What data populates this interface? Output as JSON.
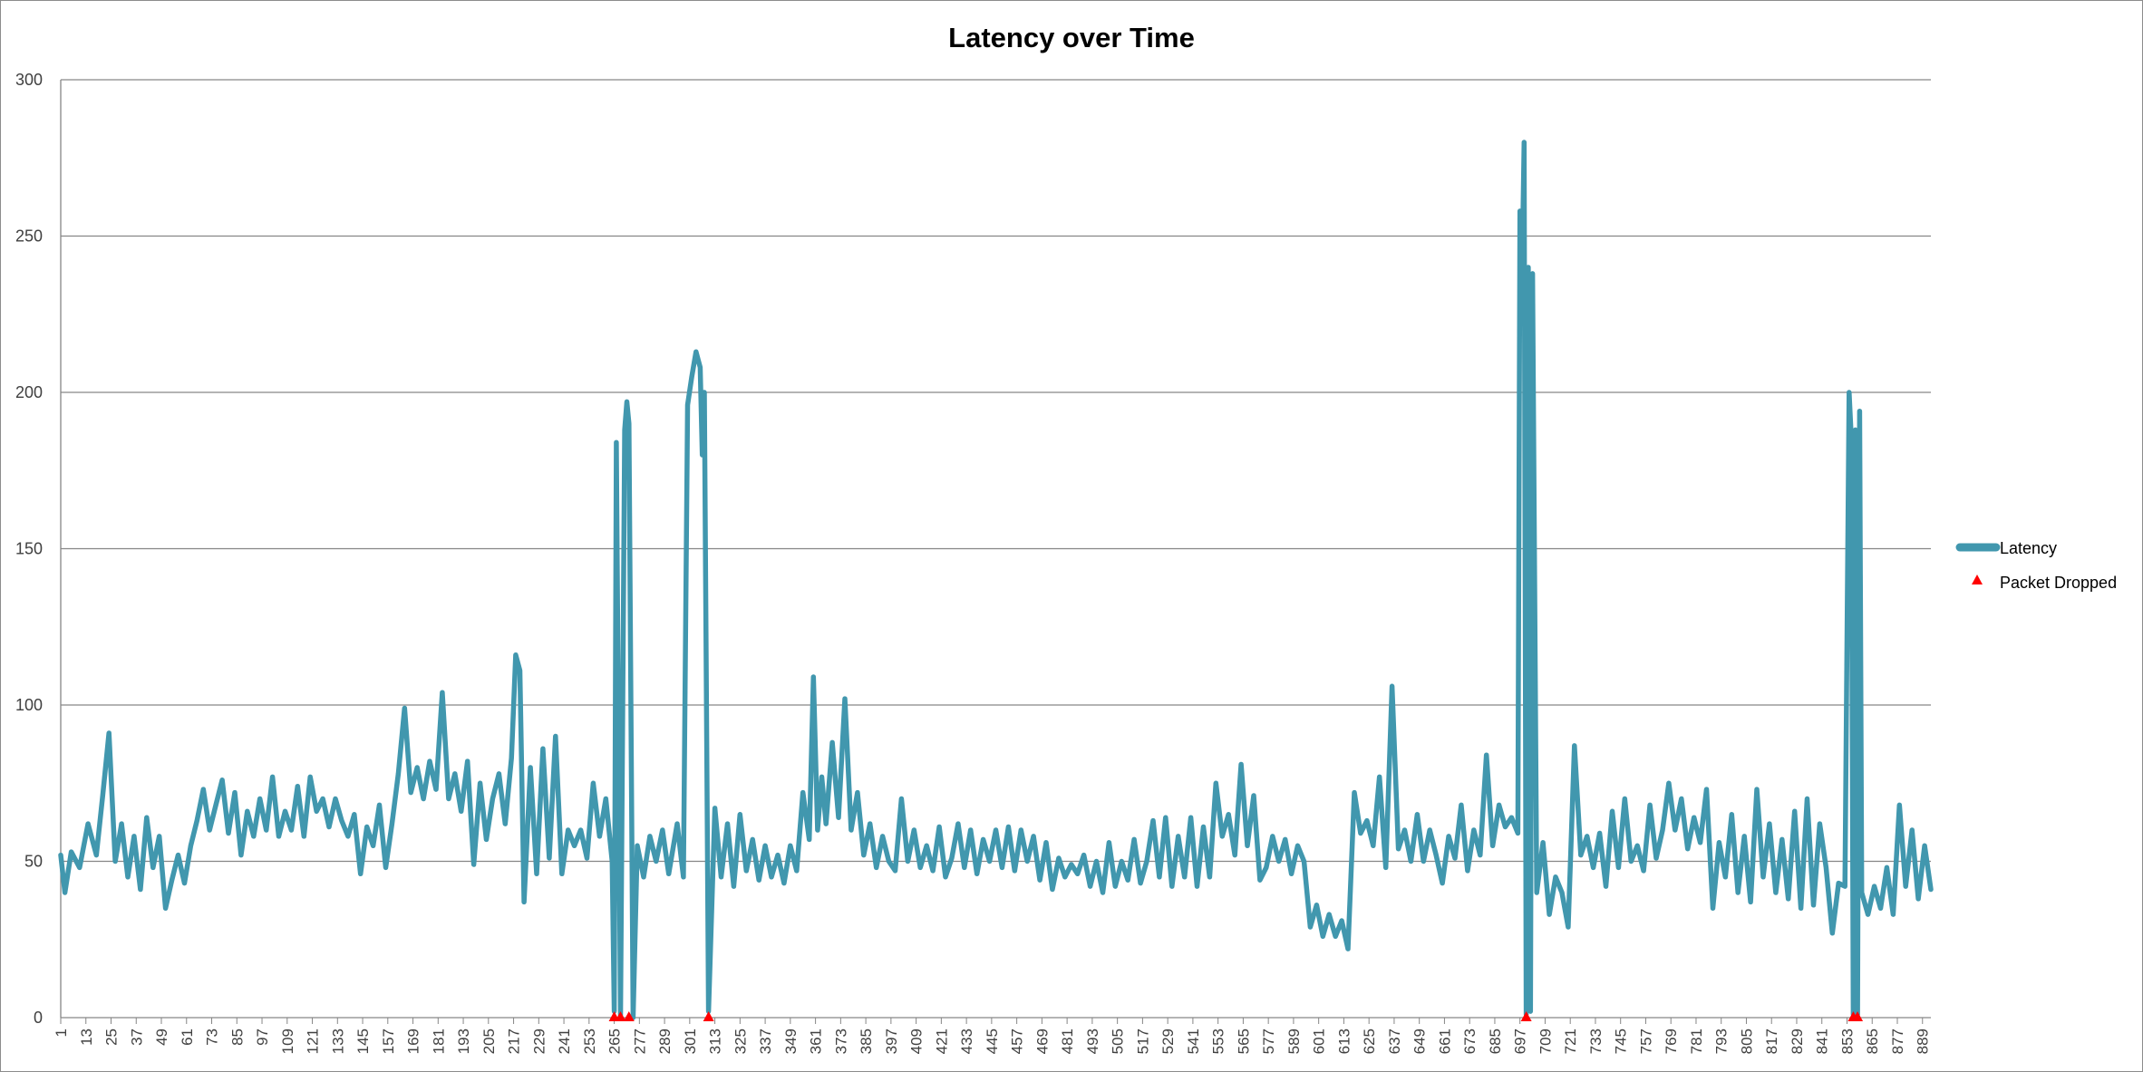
{
  "chart_data": {
    "type": "line",
    "title": "Latency over Time",
    "xlabel": "",
    "ylabel": "",
    "ylim": [
      0,
      300
    ],
    "yticks": [
      0,
      50,
      100,
      150,
      200,
      250,
      300
    ],
    "x_range": [
      1,
      893
    ],
    "xtick_labels": [
      "1",
      "13",
      "25",
      "37",
      "49",
      "61",
      "73",
      "85",
      "97",
      "109",
      "121",
      "133",
      "145",
      "157",
      "169",
      "181",
      "193",
      "205",
      "217",
      "229",
      "241",
      "253",
      "265",
      "277",
      "289",
      "301",
      "313",
      "325",
      "337",
      "349",
      "361",
      "373",
      "385",
      "397",
      "409",
      "421",
      "433",
      "445",
      "457",
      "469",
      "481",
      "493",
      "505",
      "517",
      "529",
      "541",
      "553",
      "565",
      "577",
      "589",
      "601",
      "613",
      "625",
      "637",
      "649",
      "661",
      "673",
      "685",
      "697",
      "709",
      "721",
      "733",
      "745",
      "757",
      "769",
      "781",
      "793",
      "805",
      "817",
      "829",
      "841",
      "853",
      "865",
      "877",
      "889"
    ],
    "grid": true,
    "legend_position": "right",
    "colors": {
      "latency": "#4197AE",
      "dropped": "#FF0000",
      "grid": "#868686"
    },
    "series": [
      {
        "name": "Latency",
        "style": "line",
        "points": [
          [
            1,
            52
          ],
          [
            3,
            40
          ],
          [
            6,
            53
          ],
          [
            10,
            48
          ],
          [
            14,
            62
          ],
          [
            18,
            52
          ],
          [
            21,
            71
          ],
          [
            24,
            91
          ],
          [
            27,
            50
          ],
          [
            30,
            62
          ],
          [
            33,
            45
          ],
          [
            36,
            58
          ],
          [
            39,
            41
          ],
          [
            42,
            64
          ],
          [
            45,
            48
          ],
          [
            48,
            58
          ],
          [
            51,
            35
          ],
          [
            54,
            44
          ],
          [
            57,
            52
          ],
          [
            60,
            43
          ],
          [
            63,
            55
          ],
          [
            66,
            63
          ],
          [
            69,
            73
          ],
          [
            72,
            60
          ],
          [
            75,
            68
          ],
          [
            78,
            76
          ],
          [
            81,
            59
          ],
          [
            84,
            72
          ],
          [
            87,
            52
          ],
          [
            90,
            66
          ],
          [
            93,
            58
          ],
          [
            96,
            70
          ],
          [
            99,
            60
          ],
          [
            102,
            77
          ],
          [
            105,
            58
          ],
          [
            108,
            66
          ],
          [
            111,
            60
          ],
          [
            114,
            74
          ],
          [
            117,
            58
          ],
          [
            120,
            77
          ],
          [
            123,
            66
          ],
          [
            126,
            70
          ],
          [
            129,
            61
          ],
          [
            132,
            70
          ],
          [
            135,
            63
          ],
          [
            138,
            58
          ],
          [
            141,
            65
          ],
          [
            144,
            46
          ],
          [
            147,
            61
          ],
          [
            150,
            55
          ],
          [
            153,
            68
          ],
          [
            156,
            48
          ],
          [
            159,
            62
          ],
          [
            162,
            78
          ],
          [
            165,
            99
          ],
          [
            168,
            72
          ],
          [
            171,
            80
          ],
          [
            174,
            70
          ],
          [
            177,
            82
          ],
          [
            180,
            73
          ],
          [
            183,
            104
          ],
          [
            186,
            70
          ],
          [
            189,
            78
          ],
          [
            192,
            66
          ],
          [
            195,
            82
          ],
          [
            198,
            49
          ],
          [
            201,
            75
          ],
          [
            204,
            57
          ],
          [
            207,
            70
          ],
          [
            210,
            78
          ],
          [
            213,
            62
          ],
          [
            216,
            83
          ],
          [
            218,
            116
          ],
          [
            220,
            111
          ],
          [
            222,
            37
          ],
          [
            225,
            80
          ],
          [
            228,
            46
          ],
          [
            231,
            86
          ],
          [
            234,
            51
          ],
          [
            237,
            90
          ],
          [
            240,
            46
          ],
          [
            243,
            60
          ],
          [
            246,
            55
          ],
          [
            249,
            60
          ],
          [
            252,
            51
          ],
          [
            255,
            75
          ],
          [
            258,
            58
          ],
          [
            261,
            70
          ],
          [
            264,
            50
          ],
          [
            265,
            2
          ],
          [
            266,
            184
          ],
          [
            268,
            0
          ],
          [
            270,
            188
          ],
          [
            271,
            197
          ],
          [
            272,
            190
          ],
          [
            274,
            0
          ],
          [
            276,
            55
          ],
          [
            279,
            45
          ],
          [
            282,
            58
          ],
          [
            285,
            50
          ],
          [
            288,
            60
          ],
          [
            291,
            46
          ],
          [
            295,
            62
          ],
          [
            298,
            45
          ],
          [
            300,
            196
          ],
          [
            302,
            205
          ],
          [
            304,
            213
          ],
          [
            306,
            208
          ],
          [
            307,
            180
          ],
          [
            308,
            200
          ],
          [
            310,
            2
          ],
          [
            313,
            67
          ],
          [
            316,
            45
          ],
          [
            319,
            62
          ],
          [
            322,
            42
          ],
          [
            325,
            65
          ],
          [
            328,
            47
          ],
          [
            331,
            57
          ],
          [
            334,
            44
          ],
          [
            337,
            55
          ],
          [
            340,
            45
          ],
          [
            343,
            52
          ],
          [
            346,
            43
          ],
          [
            349,
            55
          ],
          [
            352,
            47
          ],
          [
            355,
            72
          ],
          [
            358,
            57
          ],
          [
            360,
            109
          ],
          [
            362,
            60
          ],
          [
            364,
            77
          ],
          [
            366,
            62
          ],
          [
            369,
            88
          ],
          [
            372,
            64
          ],
          [
            375,
            102
          ],
          [
            378,
            60
          ],
          [
            381,
            72
          ],
          [
            384,
            52
          ],
          [
            387,
            62
          ],
          [
            390,
            48
          ],
          [
            393,
            58
          ],
          [
            396,
            50
          ],
          [
            399,
            47
          ],
          [
            402,
            70
          ],
          [
            405,
            50
          ],
          [
            408,
            60
          ],
          [
            411,
            48
          ],
          [
            414,
            55
          ],
          [
            417,
            47
          ],
          [
            420,
            61
          ],
          [
            423,
            45
          ],
          [
            426,
            51
          ],
          [
            429,
            62
          ],
          [
            432,
            48
          ],
          [
            435,
            60
          ],
          [
            438,
            46
          ],
          [
            441,
            57
          ],
          [
            444,
            50
          ],
          [
            447,
            60
          ],
          [
            450,
            48
          ],
          [
            453,
            61
          ],
          [
            456,
            47
          ],
          [
            459,
            60
          ],
          [
            462,
            50
          ],
          [
            465,
            58
          ],
          [
            468,
            44
          ],
          [
            471,
            56
          ],
          [
            474,
            41
          ],
          [
            477,
            51
          ],
          [
            480,
            45
          ],
          [
            483,
            49
          ],
          [
            486,
            46
          ],
          [
            489,
            52
          ],
          [
            492,
            42
          ],
          [
            495,
            50
          ],
          [
            498,
            40
          ],
          [
            501,
            56
          ],
          [
            504,
            42
          ],
          [
            507,
            50
          ],
          [
            510,
            44
          ],
          [
            513,
            57
          ],
          [
            516,
            43
          ],
          [
            519,
            50
          ],
          [
            522,
            63
          ],
          [
            525,
            45
          ],
          [
            528,
            64
          ],
          [
            531,
            42
          ],
          [
            534,
            58
          ],
          [
            537,
            45
          ],
          [
            540,
            64
          ],
          [
            543,
            42
          ],
          [
            546,
            61
          ],
          [
            549,
            45
          ],
          [
            552,
            75
          ],
          [
            555,
            58
          ],
          [
            558,
            65
          ],
          [
            561,
            52
          ],
          [
            564,
            81
          ],
          [
            567,
            55
          ],
          [
            570,
            71
          ],
          [
            573,
            44
          ],
          [
            576,
            48
          ],
          [
            579,
            58
          ],
          [
            582,
            50
          ],
          [
            585,
            57
          ],
          [
            588,
            46
          ],
          [
            591,
            55
          ],
          [
            594,
            50
          ],
          [
            597,
            29
          ],
          [
            600,
            36
          ],
          [
            603,
            26
          ],
          [
            606,
            33
          ],
          [
            609,
            26
          ],
          [
            612,
            31
          ],
          [
            615,
            22
          ],
          [
            618,
            72
          ],
          [
            621,
            59
          ],
          [
            624,
            63
          ],
          [
            627,
            55
          ],
          [
            630,
            77
          ],
          [
            633,
            48
          ],
          [
            636,
            106
          ],
          [
            639,
            54
          ],
          [
            642,
            60
          ],
          [
            645,
            50
          ],
          [
            648,
            65
          ],
          [
            651,
            50
          ],
          [
            654,
            60
          ],
          [
            657,
            52
          ],
          [
            660,
            43
          ],
          [
            663,
            58
          ],
          [
            666,
            51
          ],
          [
            669,
            68
          ],
          [
            672,
            47
          ],
          [
            675,
            60
          ],
          [
            678,
            52
          ],
          [
            681,
            84
          ],
          [
            684,
            55
          ],
          [
            687,
            68
          ],
          [
            690,
            61
          ],
          [
            693,
            64
          ],
          [
            696,
            59
          ],
          [
            697,
            258
          ],
          [
            698,
            237
          ],
          [
            699,
            280
          ],
          [
            700,
            1
          ],
          [
            701,
            240
          ],
          [
            702,
            2
          ],
          [
            703,
            238
          ],
          [
            705,
            40
          ],
          [
            708,
            56
          ],
          [
            711,
            33
          ],
          [
            714,
            45
          ],
          [
            717,
            40
          ],
          [
            720,
            29
          ],
          [
            723,
            87
          ],
          [
            726,
            52
          ],
          [
            729,
            58
          ],
          [
            732,
            48
          ],
          [
            735,
            59
          ],
          [
            738,
            42
          ],
          [
            741,
            66
          ],
          [
            744,
            48
          ],
          [
            747,
            70
          ],
          [
            750,
            50
          ],
          [
            753,
            55
          ],
          [
            756,
            47
          ],
          [
            759,
            68
          ],
          [
            762,
            51
          ],
          [
            765,
            60
          ],
          [
            768,
            75
          ],
          [
            771,
            60
          ],
          [
            774,
            70
          ],
          [
            777,
            54
          ],
          [
            780,
            64
          ],
          [
            783,
            56
          ],
          [
            786,
            73
          ],
          [
            789,
            35
          ],
          [
            792,
            56
          ],
          [
            795,
            45
          ],
          [
            798,
            65
          ],
          [
            801,
            40
          ],
          [
            804,
            58
          ],
          [
            807,
            37
          ],
          [
            810,
            73
          ],
          [
            813,
            45
          ],
          [
            816,
            62
          ],
          [
            819,
            40
          ],
          [
            822,
            57
          ],
          [
            825,
            38
          ],
          [
            828,
            66
          ],
          [
            831,
            35
          ],
          [
            834,
            70
          ],
          [
            837,
            36
          ],
          [
            840,
            62
          ],
          [
            843,
            48
          ],
          [
            846,
            27
          ],
          [
            849,
            43
          ],
          [
            852,
            42
          ],
          [
            854,
            200
          ],
          [
            855,
            186
          ],
          [
            856,
            1
          ],
          [
            857,
            188
          ],
          [
            858,
            1
          ],
          [
            859,
            194
          ],
          [
            860,
            40
          ],
          [
            863,
            33
          ],
          [
            866,
            42
          ],
          [
            869,
            35
          ],
          [
            872,
            48
          ],
          [
            875,
            33
          ],
          [
            878,
            68
          ],
          [
            881,
            42
          ],
          [
            884,
            60
          ],
          [
            887,
            38
          ],
          [
            890,
            55
          ],
          [
            893,
            41
          ]
        ]
      },
      {
        "name": "Packet Dropped",
        "style": "marker",
        "x": [
          265,
          268,
          272,
          310,
          700,
          856,
          858
        ],
        "values": [
          0,
          0,
          0,
          0,
          0,
          0,
          0
        ]
      }
    ]
  }
}
